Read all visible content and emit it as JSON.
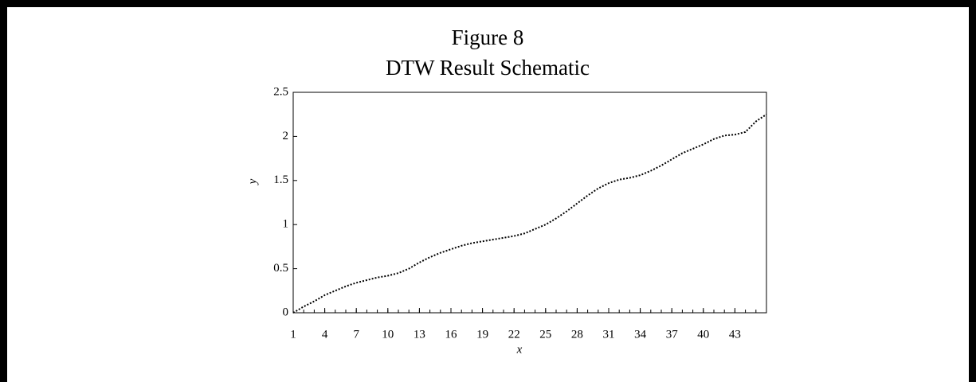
{
  "chart_data": {
    "type": "line",
    "title": "Figure 8",
    "subtitle": "DTW Result Schematic",
    "x_label": "x",
    "y_label": "y",
    "x": [
      1,
      2,
      3,
      4,
      5,
      6,
      7,
      8,
      9,
      10,
      11,
      12,
      13,
      14,
      15,
      16,
      17,
      18,
      19,
      20,
      21,
      22,
      23,
      24,
      25,
      26,
      27,
      28,
      29,
      30,
      31,
      32,
      33,
      34,
      35,
      36,
      37,
      38,
      39,
      40,
      41,
      42,
      43,
      44,
      45,
      46
    ],
    "series": [
      {
        "name": "DTW",
        "color": "#000000",
        "values": [
          0,
          0.07,
          0.13,
          0.2,
          0.25,
          0.3,
          0.34,
          0.37,
          0.4,
          0.42,
          0.45,
          0.5,
          0.57,
          0.63,
          0.68,
          0.72,
          0.76,
          0.79,
          0.81,
          0.83,
          0.85,
          0.87,
          0.9,
          0.95,
          1.0,
          1.07,
          1.15,
          1.24,
          1.33,
          1.41,
          1.47,
          1.51,
          1.53,
          1.56,
          1.61,
          1.67,
          1.74,
          1.81,
          1.86,
          1.91,
          1.97,
          2.01,
          2.02,
          2.05,
          2.17,
          2.25
        ]
      }
    ],
    "xlim": [
      1,
      46
    ],
    "ylim": [
      0,
      2.5
    ],
    "xticks": [
      1,
      4,
      7,
      10,
      13,
      16,
      19,
      22,
      25,
      28,
      31,
      34,
      37,
      40,
      43
    ],
    "xminorticks": [
      1,
      2,
      3,
      4,
      5,
      6,
      7,
      8,
      9,
      10,
      11,
      12,
      13,
      14,
      15,
      16,
      17,
      18,
      19,
      20,
      21,
      22,
      23,
      24,
      25,
      26,
      27,
      28,
      29,
      30,
      31,
      32,
      33,
      34,
      35,
      36,
      37,
      38,
      39,
      40,
      41,
      42,
      43,
      44,
      45,
      46
    ],
    "yticks": [
      0,
      0.5,
      1,
      1.5,
      2,
      2.5
    ],
    "line_style": "dotted"
  }
}
